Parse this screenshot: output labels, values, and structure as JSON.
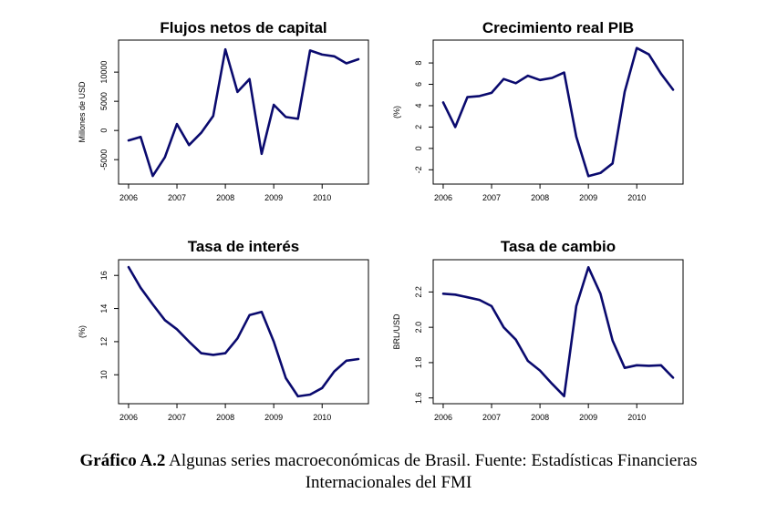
{
  "chart_data": [
    {
      "type": "line",
      "title": "Flujos netos de capital",
      "xlabel": "",
      "ylabel": "Millones de USD",
      "x": [
        2006.0,
        2006.25,
        2006.5,
        2006.75,
        2007.0,
        2007.25,
        2007.5,
        2007.75,
        2008.0,
        2008.25,
        2008.5,
        2008.75,
        2009.0,
        2009.25,
        2009.5,
        2009.75,
        2010.0,
        2010.25,
        2010.5,
        2010.75
      ],
      "values": [
        -1700,
        -1100,
        -7800,
        -4600,
        1100,
        -2500,
        -400,
        2500,
        13900,
        6600,
        8800,
        -4000,
        4400,
        2300,
        2000,
        13700,
        13000,
        12700,
        11500,
        12200
      ],
      "xlim": [
        2006.0,
        2010.75
      ],
      "ylim": [
        -8200,
        14500
      ],
      "xticks": [
        2006,
        2007,
        2008,
        2009,
        2010
      ],
      "xtick_labels": [
        "2006",
        "2007",
        "2008",
        "2009",
        "2010"
      ],
      "yticks": [
        -5000,
        0,
        5000,
        10000
      ],
      "ytick_labels": [
        "-5000",
        "0",
        "5000",
        "10000"
      ],
      "color": "#0a0a6e"
    },
    {
      "type": "line",
      "title": "Crecimiento real PIB",
      "xlabel": "",
      "ylabel": "(%)",
      "x": [
        2006.0,
        2006.25,
        2006.5,
        2006.75,
        2007.0,
        2007.25,
        2007.5,
        2007.75,
        2008.0,
        2008.25,
        2008.5,
        2008.75,
        2009.0,
        2009.25,
        2009.5,
        2009.75,
        2010.0,
        2010.25,
        2010.5,
        2010.75
      ],
      "values": [
        4.3,
        2.0,
        4.8,
        4.9,
        5.2,
        6.5,
        6.1,
        6.8,
        6.4,
        6.6,
        7.1,
        1.1,
        -2.6,
        -2.3,
        -1.4,
        5.3,
        9.4,
        8.8,
        7.0,
        5.5
      ],
      "xlim": [
        2006.0,
        2010.75
      ],
      "ylim": [
        -2.8,
        9.6
      ],
      "xticks": [
        2006,
        2007,
        2008,
        2009,
        2010
      ],
      "xtick_labels": [
        "2006",
        "2007",
        "2008",
        "2009",
        "2010"
      ],
      "yticks": [
        -2,
        0,
        2,
        4,
        6,
        8
      ],
      "ytick_labels": [
        "-2",
        "0",
        "2",
        "4",
        "6",
        "8"
      ],
      "color": "#0a0a6e"
    },
    {
      "type": "line",
      "title": "Tasa de interés",
      "xlabel": "",
      "ylabel": "(%)",
      "x": [
        2006.0,
        2006.25,
        2006.5,
        2006.75,
        2007.0,
        2007.25,
        2007.5,
        2007.75,
        2008.0,
        2008.25,
        2008.5,
        2008.75,
        2009.0,
        2009.25,
        2009.5,
        2009.75,
        2010.0,
        2010.25,
        2010.5,
        2010.75
      ],
      "values": [
        16.5,
        15.25,
        14.25,
        13.3,
        12.75,
        12.0,
        11.3,
        11.2,
        11.3,
        12.2,
        13.6,
        13.8,
        12.0,
        9.8,
        8.7,
        8.8,
        9.2,
        10.2,
        10.85,
        10.95
      ],
      "xlim": [
        2006.0,
        2010.75
      ],
      "ylim": [
        8.6,
        16.6
      ],
      "xticks": [
        2006,
        2007,
        2008,
        2009,
        2010
      ],
      "xtick_labels": [
        "2006",
        "2007",
        "2008",
        "2009",
        "2010"
      ],
      "yticks": [
        10,
        12,
        14,
        16
      ],
      "ytick_labels": [
        "10",
        "12",
        "14",
        "16"
      ],
      "color": "#0a0a6e"
    },
    {
      "type": "line",
      "title": "Tasa de cambio",
      "xlabel": "",
      "ylabel": "BRL/USD",
      "x": [
        2006.0,
        2006.25,
        2006.5,
        2006.75,
        2007.0,
        2007.25,
        2007.5,
        2007.75,
        2008.0,
        2008.25,
        2008.5,
        2008.75,
        2009.0,
        2009.25,
        2009.5,
        2009.75,
        2010.0,
        2010.25,
        2010.5,
        2010.75
      ],
      "values": [
        2.19,
        2.185,
        2.17,
        2.155,
        2.12,
        2.0,
        1.93,
        1.81,
        1.755,
        1.68,
        1.61,
        2.12,
        2.34,
        2.19,
        1.925,
        1.77,
        1.785,
        1.782,
        1.785,
        1.715
      ],
      "xlim": [
        2006.0,
        2010.75
      ],
      "ylim": [
        1.6,
        2.35
      ],
      "xticks": [
        2006,
        2007,
        2008,
        2009,
        2010
      ],
      "xtick_labels": [
        "2006",
        "2007",
        "2008",
        "2009",
        "2010"
      ],
      "yticks": [
        1.6,
        1.8,
        2.0,
        2.2
      ],
      "ytick_labels": [
        "1.6",
        "1.8",
        "2.0",
        "2.2"
      ],
      "color": "#0a0a6e"
    }
  ],
  "caption": {
    "lead": "Gráfico A.2",
    "line1": " Algunas series macroeconómicas de Brasil. Fuente: Estadísticas Financieras",
    "line2": "Internacionales del FMI"
  }
}
